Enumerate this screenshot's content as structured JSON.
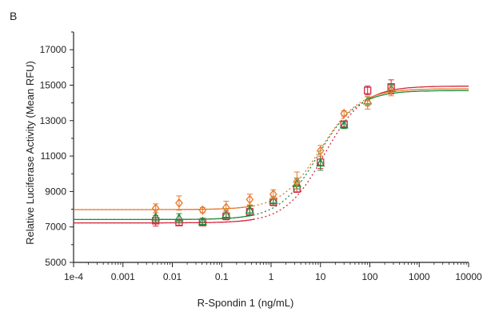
{
  "panel_label": "B",
  "chart_data": {
    "type": "scatter",
    "title": "",
    "xlabel": "R-Spondin 1 (ng/mL)",
    "ylabel": "Relative Luciferase Activity (Mean RFU)",
    "xscale": "log",
    "xlim": [
      0.0001,
      10000
    ],
    "ylim": [
      5000,
      18000
    ],
    "x_ticks": [
      {
        "value": 0.0001,
        "label": "1e-4"
      },
      {
        "value": 0.001,
        "label": "0.001"
      },
      {
        "value": 0.01,
        "label": "0.01"
      },
      {
        "value": 0.1,
        "label": "0.1"
      },
      {
        "value": 1,
        "label": "1"
      },
      {
        "value": 10,
        "label": "10"
      },
      {
        "value": 100,
        "label": "100"
      },
      {
        "value": 1000,
        "label": "1000"
      },
      {
        "value": 10000,
        "label": "10000"
      }
    ],
    "y_ticks": [
      {
        "value": 5000,
        "label": "5000"
      },
      {
        "value": 7000,
        "label": "7000"
      },
      {
        "value": 9000,
        "label": "9000"
      },
      {
        "value": 11000,
        "label": "11000"
      },
      {
        "value": 13000,
        "label": "13000"
      },
      {
        "value": 15000,
        "label": "15000"
      },
      {
        "value": 17000,
        "label": "17000"
      }
    ],
    "grid": false,
    "legend": "none",
    "series": [
      {
        "color": "#d7263d",
        "marker": "square",
        "x": [
          0.0046,
          0.0137,
          0.041,
          0.123,
          0.37,
          1.11,
          3.33,
          10,
          30,
          90,
          270
        ],
        "y": [
          7350,
          7250,
          7250,
          7600,
          7850,
          8400,
          9150,
          10650,
          12800,
          14700,
          14900
        ],
        "err": [
          300,
          150,
          180,
          200,
          200,
          200,
          200,
          350,
          150,
          250,
          400
        ],
        "fit": {
          "bottom": 7230,
          "top": 14950,
          "ec50": 12,
          "hill": 1.1
        }
      },
      {
        "color": "#1f8a3b",
        "marker": "triangle",
        "x": [
          0.0046,
          0.0137,
          0.041,
          0.123,
          0.37,
          1.11,
          3.33,
          10,
          30,
          90,
          270
        ],
        "y": [
          7550,
          7500,
          7300,
          7700,
          7950,
          8500,
          9450,
          10600,
          12750,
          14100,
          14800
        ],
        "err": [
          250,
          250,
          200,
          200,
          250,
          200,
          300,
          400,
          200,
          250,
          250
        ],
        "fit": {
          "bottom": 7420,
          "top": 14700,
          "ec50": 9,
          "hill": 1.1
        }
      },
      {
        "color": "#e8782a",
        "marker": "diamond",
        "x": [
          0.0046,
          0.0137,
          0.041,
          0.123,
          0.37,
          1.11,
          3.33,
          10,
          30,
          90,
          270
        ],
        "y": [
          8050,
          8350,
          7950,
          8100,
          8550,
          8850,
          9550,
          11300,
          13400,
          14000,
          14700
        ],
        "err": [
          250,
          400,
          150,
          350,
          300,
          250,
          550,
          300,
          150,
          350,
          300
        ],
        "fit": {
          "bottom": 7980,
          "top": 14800,
          "ec50": 10,
          "hill": 1.1
        }
      }
    ]
  }
}
